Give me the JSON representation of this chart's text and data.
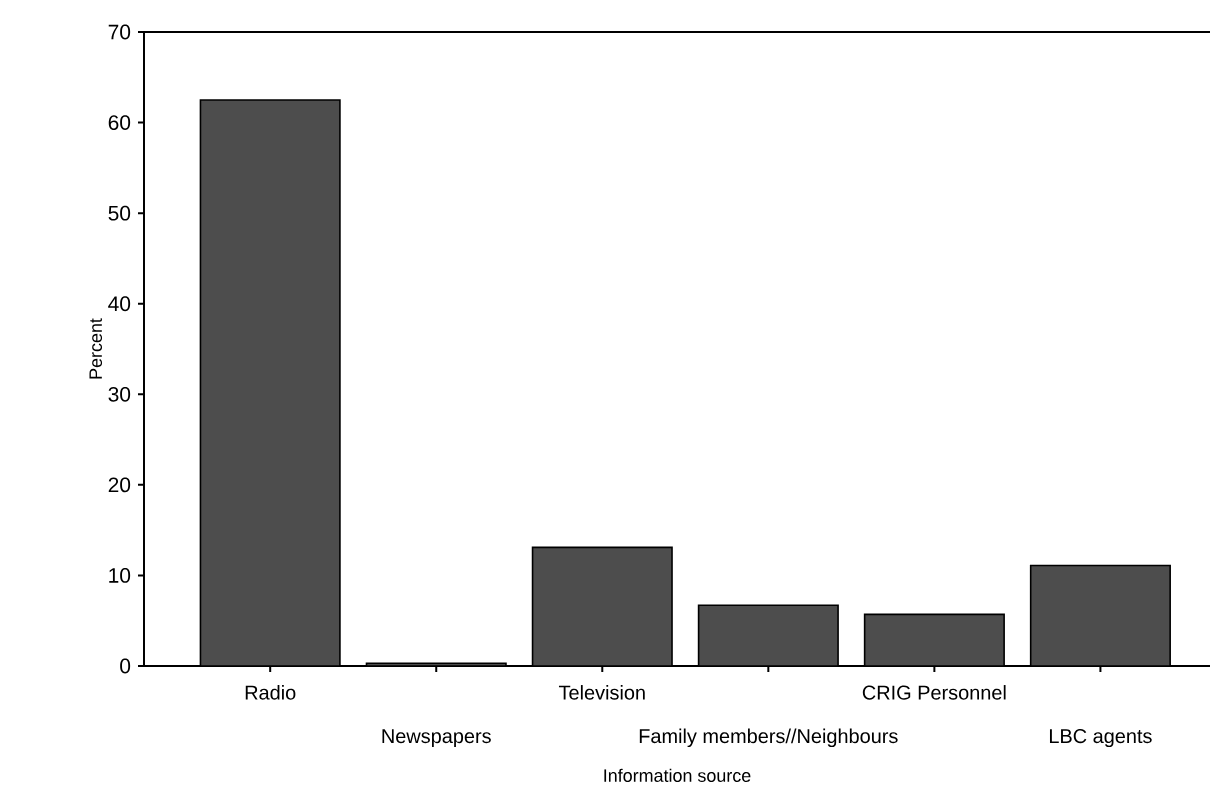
{
  "chart_data": {
    "type": "bar",
    "xlabel": "Information source",
    "ylabel": "Percent",
    "categories": [
      "Radio",
      "Newspapers",
      "Television",
      "Family members//Neighbours",
      "CRIG Personnel",
      "LBC agents"
    ],
    "values": [
      62.5,
      0.3,
      13.1,
      6.7,
      5.7,
      11.1
    ],
    "color": "#4d4d4d",
    "ylim": [
      0,
      70
    ],
    "yticks": [
      0,
      10,
      20,
      30,
      40,
      50,
      60,
      70
    ]
  }
}
